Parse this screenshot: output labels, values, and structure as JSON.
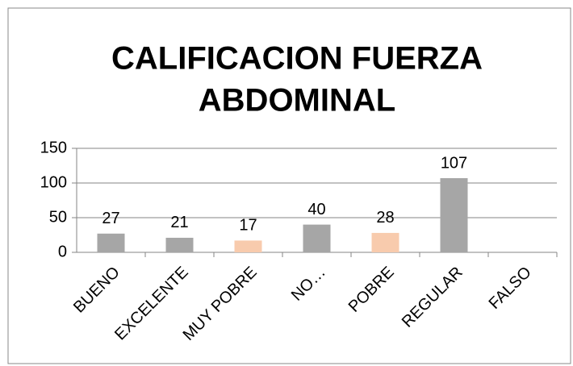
{
  "chart_data": {
    "type": "bar",
    "title_lines": [
      "CALIFICACION  FUERZA",
      "ABDOMINAL"
    ],
    "categories": [
      "BUENO",
      "EXCELENTE",
      "MUY POBRE",
      "NO…",
      "POBRE",
      "REGULAR",
      "FALSO"
    ],
    "values": [
      27,
      21,
      17,
      40,
      28,
      107,
      null
    ],
    "colors": [
      "#a6a6a6",
      "#a6a6a6",
      "#f8cbad",
      "#a6a6a6",
      "#f8cbad",
      "#a6a6a6",
      "#a6a6a6"
    ],
    "ylim": [
      0,
      150
    ],
    "yticks": [
      0,
      50,
      100,
      150
    ],
    "grid": true
  }
}
